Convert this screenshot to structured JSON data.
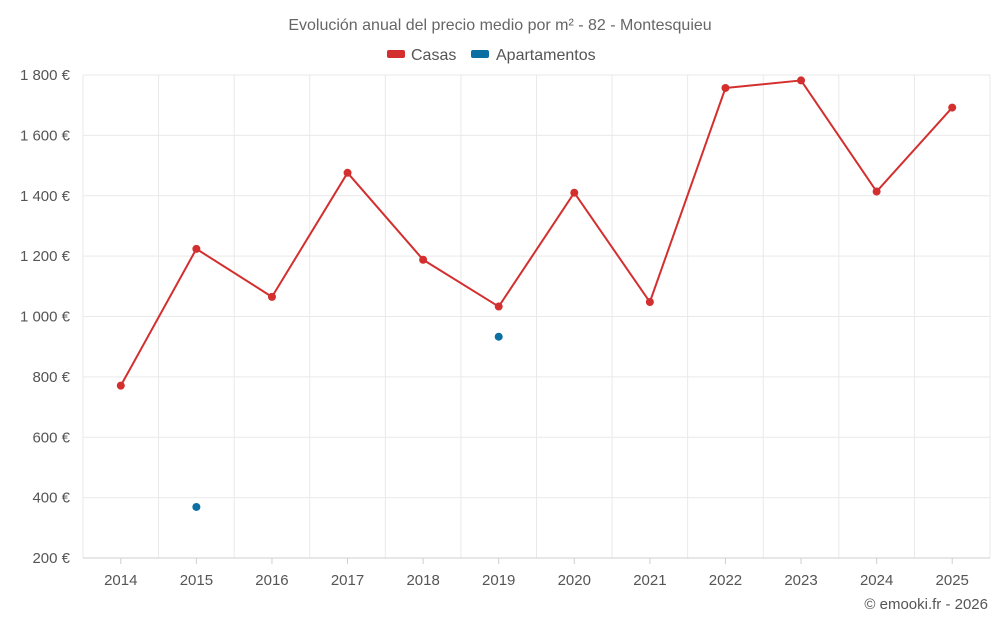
{
  "chart_data": {
    "type": "line",
    "title": "Evolución anual del precio medio por m² - 82 - Montesquieu",
    "categories": [
      "2014",
      "2015",
      "2016",
      "2017",
      "2018",
      "2019",
      "2020",
      "2021",
      "2022",
      "2023",
      "2024",
      "2025"
    ],
    "series": [
      {
        "name": "Casas",
        "color": "#d32f2f",
        "values": [
          771,
          1224,
          1065,
          1476,
          1188,
          1033,
          1410,
          1048,
          1757,
          1782,
          1414,
          1692
        ]
      },
      {
        "name": "Apartamentos",
        "color": "#0b6fa4",
        "values": [
          null,
          369,
          null,
          null,
          null,
          933,
          null,
          null,
          null,
          null,
          null,
          null
        ]
      }
    ],
    "ylim": [
      200,
      1800
    ],
    "yticks": [
      200,
      400,
      600,
      800,
      1000,
      1200,
      1400,
      1600,
      1800
    ],
    "ytick_labels": [
      "200 €",
      "400 €",
      "600 €",
      "800 €",
      "1 000 €",
      "1 200 €",
      "1 400 €",
      "1 600 €",
      "1 800 €"
    ],
    "legend_position": "top-center",
    "grid": true,
    "credit": "© emooki.fr - 2026"
  }
}
